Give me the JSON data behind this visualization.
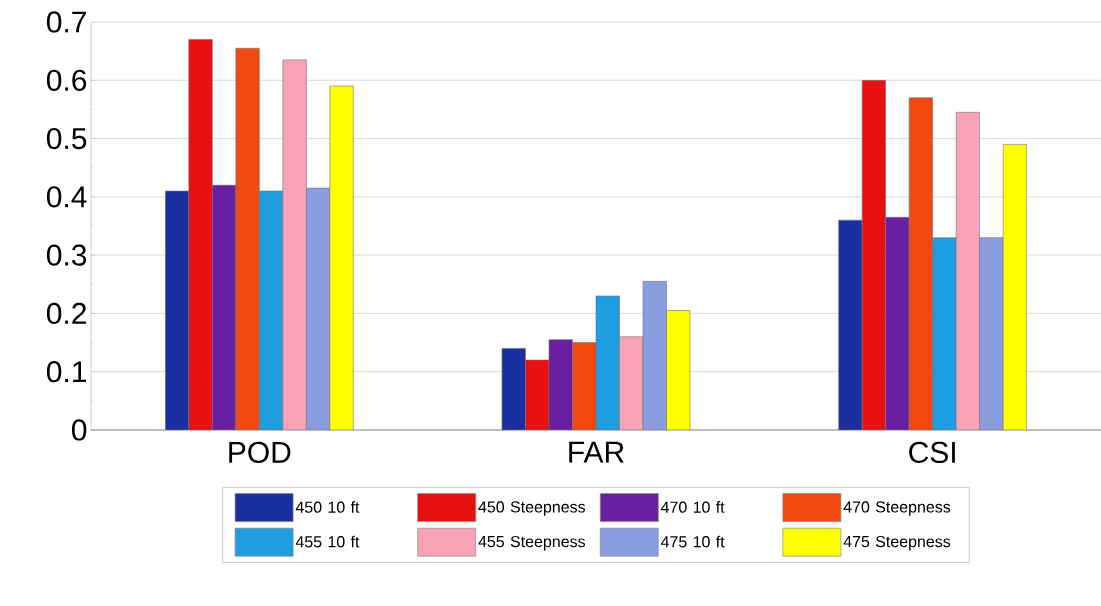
{
  "chart_data": {
    "type": "bar",
    "categories": [
      "POD",
      "FAR",
      "CSI"
    ],
    "series": [
      {
        "name": "450 10 ft",
        "color": "#1a2fa0",
        "values": [
          0.41,
          0.14,
          0.36
        ]
      },
      {
        "name": "450 Steepness",
        "color": "#e81010",
        "values": [
          0.67,
          0.12,
          0.6
        ]
      },
      {
        "name": "470 10 ft",
        "color": "#6a1fa0",
        "values": [
          0.42,
          0.155,
          0.365
        ]
      },
      {
        "name": "470 Steepness",
        "color": "#f04a10",
        "values": [
          0.655,
          0.15,
          0.57
        ]
      },
      {
        "name": "455 10 ft",
        "color": "#1e9ee0",
        "values": [
          0.41,
          0.23,
          0.33
        ]
      },
      {
        "name": "455 Steepness",
        "color": "#f7a3b5",
        "values": [
          0.635,
          0.16,
          0.545
        ]
      },
      {
        "name": "475 10 ft",
        "color": "#8a9de0",
        "values": [
          0.415,
          0.255,
          0.33
        ]
      },
      {
        "name": "475 Steepness",
        "color": "#ffff00",
        "values": [
          0.59,
          0.205,
          0.49
        ]
      }
    ],
    "ylim": [
      0,
      0.7
    ],
    "yticks": [
      0,
      0.1,
      0.2,
      0.3,
      0.4,
      0.5,
      0.6,
      0.7
    ],
    "grid": "y",
    "legend": "bottom"
  }
}
